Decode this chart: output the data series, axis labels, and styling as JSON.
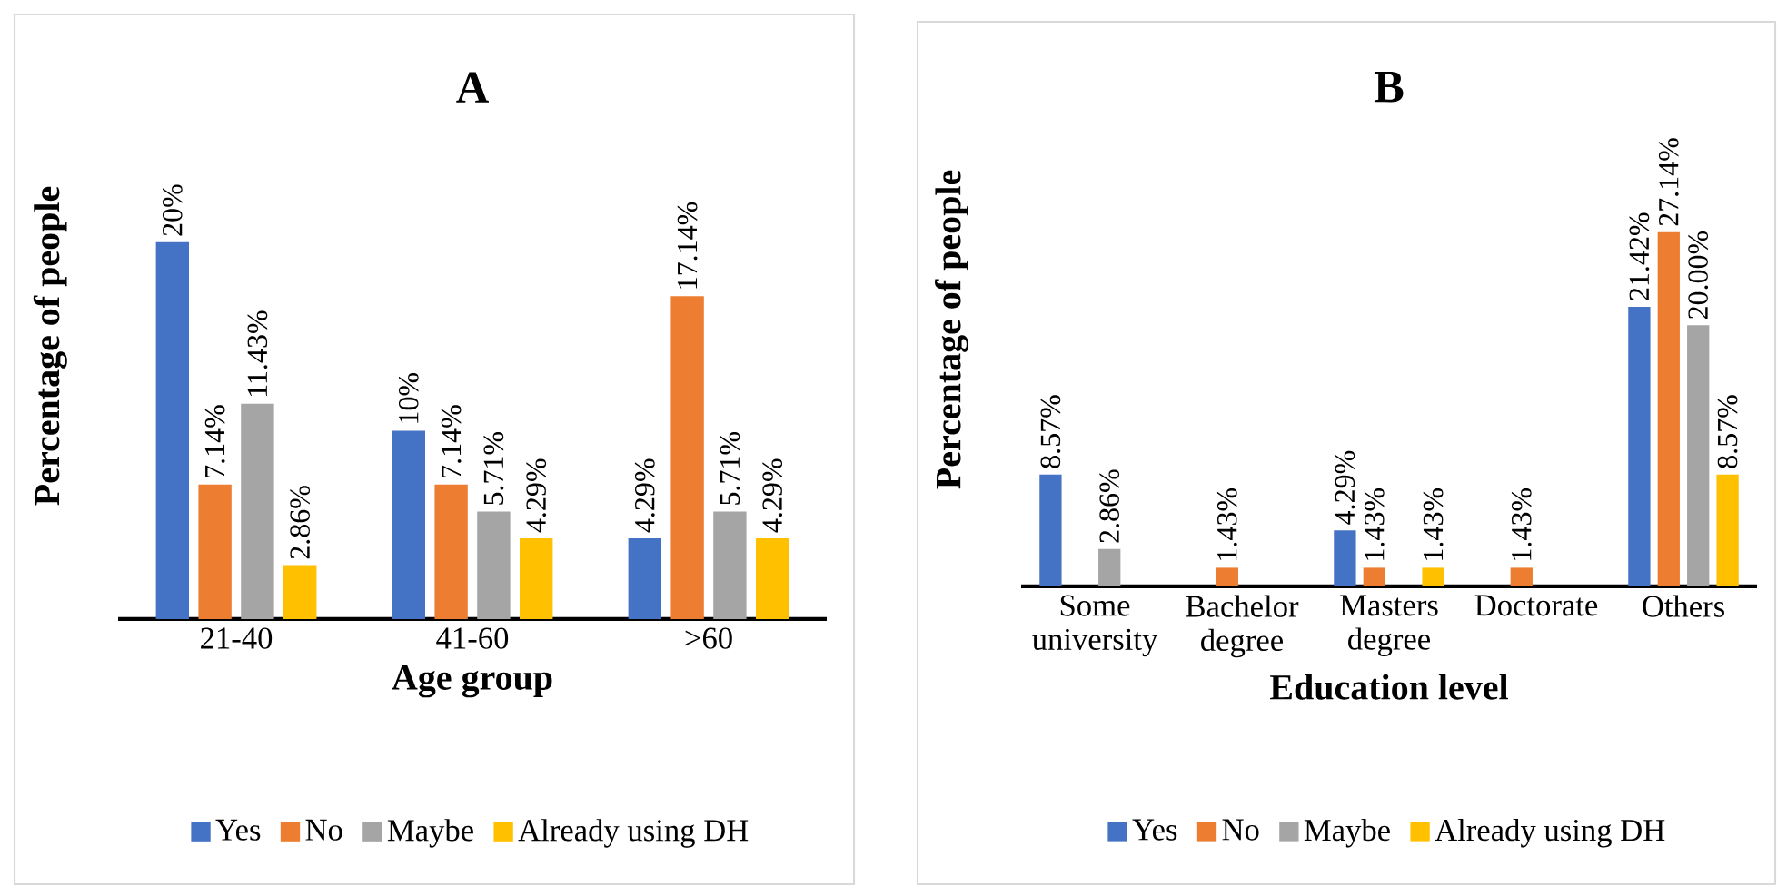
{
  "chart_data": [
    {
      "type": "bar",
      "title": "A",
      "xlabel": "Age group",
      "ylabel": "Percentage of people",
      "categories": [
        "21-40",
        "41-60",
        ">60"
      ],
      "legend": "bottom",
      "series": [
        {
          "name": "Yes",
          "color": "#4472c4",
          "values": [
            20,
            10,
            4.29
          ],
          "value_labels": [
            "20%",
            "10%",
            "4.29%"
          ]
        },
        {
          "name": "No",
          "color": "#ed7d31",
          "values": [
            7.14,
            7.14,
            17.14
          ],
          "value_labels": [
            "7.14%",
            "7.14%",
            "17.14%"
          ]
        },
        {
          "name": "Maybe",
          "color": "#a5a5a5",
          "values": [
            11.43,
            5.71,
            5.71
          ],
          "value_labels": [
            "11.43%",
            "5.71%",
            "5.71%"
          ]
        },
        {
          "name": "Already using DH",
          "color": "#ffc000",
          "values": [
            2.86,
            4.29,
            4.29
          ],
          "value_labels": [
            "2.86%",
            "4.29%",
            "4.29%"
          ]
        }
      ]
    },
    {
      "type": "bar",
      "title": "B",
      "xlabel": "Education level",
      "ylabel": "Percentage of people",
      "categories": [
        "Some university",
        "Bachelor degree",
        "Masters degree",
        "Doctorate",
        "Others"
      ],
      "legend": "bottom",
      "series": [
        {
          "name": "Yes",
          "color": "#4472c4",
          "values": [
            8.57,
            null,
            4.29,
            null,
            21.42
          ],
          "value_labels": [
            "8.57%",
            null,
            "4.29%",
            null,
            "21.42%"
          ]
        },
        {
          "name": "No",
          "color": "#ed7d31",
          "values": [
            null,
            1.43,
            1.43,
            1.43,
            27.14
          ],
          "value_labels": [
            null,
            "1.43%",
            "1.43%",
            "1.43%",
            "27.14%"
          ]
        },
        {
          "name": "Maybe",
          "color": "#a5a5a5",
          "values": [
            2.86,
            null,
            null,
            null,
            20.0
          ],
          "value_labels": [
            "2.86%",
            null,
            null,
            null,
            "20.00%"
          ]
        },
        {
          "name": "Already using DH",
          "color": "#ffc000",
          "values": [
            null,
            null,
            1.43,
            null,
            8.57
          ],
          "value_labels": [
            null,
            null,
            "1.43%",
            null,
            "8.57%"
          ]
        }
      ]
    }
  ]
}
